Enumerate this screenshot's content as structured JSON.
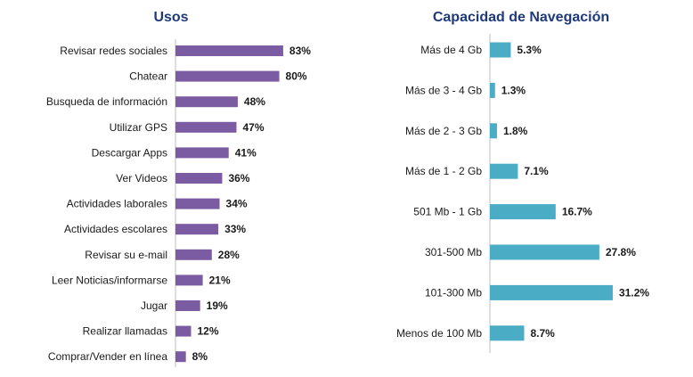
{
  "chart_data": [
    {
      "type": "bar",
      "orientation": "horizontal",
      "title": "Usos",
      "color": "#7b5ca3",
      "title_color": "#1f3a7a",
      "xlim": [
        0,
        100
      ],
      "categories": [
        "Revisar redes sociales",
        "Chatear",
        "Busqueda de información",
        "Utilizar GPS",
        "Descargar Apps",
        "Ver Videos",
        "Actividades laborales",
        "Actividades escolares",
        "Revisar su e-mail",
        "Leer Noticias/informarse",
        "Jugar",
        "Realizar llamadas",
        "Comprar/Vender en línea"
      ],
      "values": [
        83,
        80,
        48,
        47,
        41,
        36,
        34,
        33,
        28,
        21,
        19,
        12,
        8
      ],
      "labels": [
        "83%",
        "80%",
        "48%",
        "47%",
        "41%",
        "36%",
        "34%",
        "33%",
        "28%",
        "21%",
        "19%",
        "12%",
        "8%"
      ]
    },
    {
      "type": "bar",
      "orientation": "horizontal",
      "title": "Capacidad de Navegación",
      "color": "#4bacc6",
      "title_color": "#1f3a7a",
      "xlim": [
        0,
        40
      ],
      "categories": [
        "Más de 4 Gb",
        "Más de 3 - 4 Gb",
        "Más de 2 - 3 Gb",
        "Más de 1 - 2 Gb",
        "501 Mb - 1 Gb",
        "301-500 Mb",
        "101-300 Mb",
        "Menos de 100 Mb"
      ],
      "values": [
        5.3,
        1.3,
        1.8,
        7.1,
        16.7,
        27.8,
        31.2,
        8.7
      ],
      "labels": [
        "5.3%",
        "1.3%",
        "1.8%",
        "7.1%",
        "16.7%",
        "27.8%",
        "31.2%",
        "8.7%"
      ]
    }
  ]
}
